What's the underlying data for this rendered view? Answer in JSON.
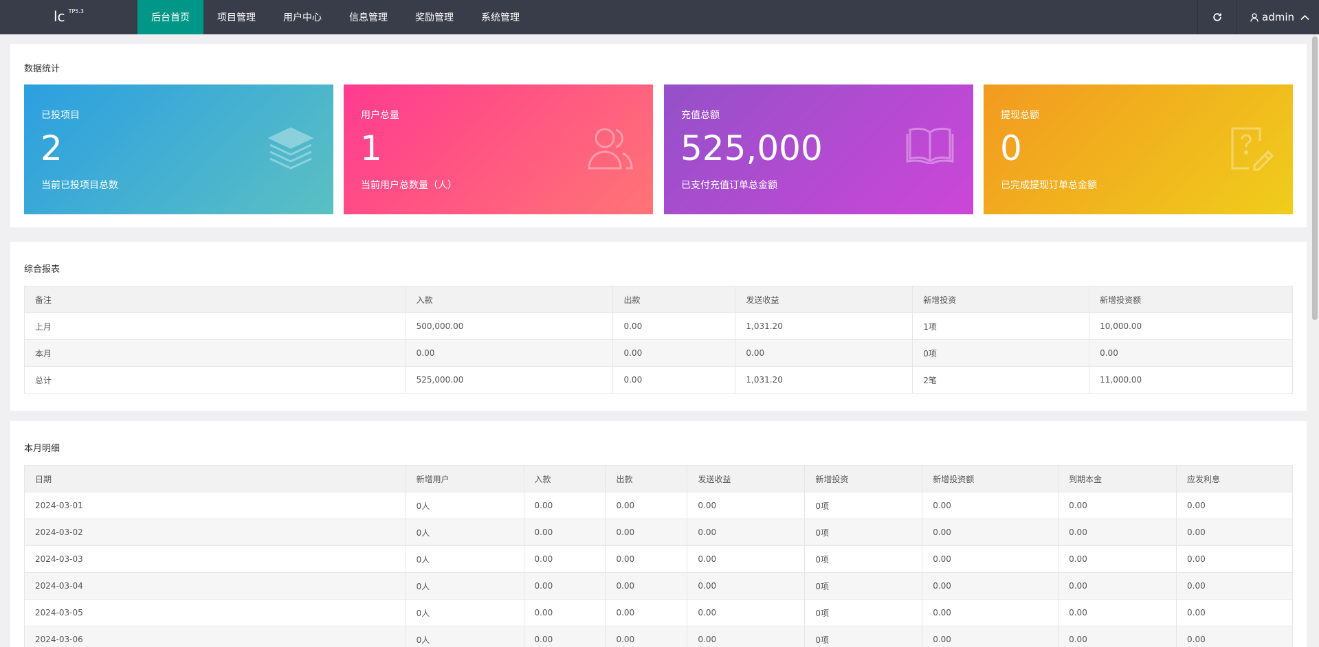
{
  "app": {
    "logo_text": "lc",
    "logo_version": "TP5.3"
  },
  "nav": {
    "items": [
      {
        "label": "后台首页",
        "active": true
      },
      {
        "label": "项目管理"
      },
      {
        "label": "用户中心"
      },
      {
        "label": "信息管理"
      },
      {
        "label": "奖励管理"
      },
      {
        "label": "系统管理"
      }
    ],
    "refresh_icon": "refresh-icon",
    "user": {
      "name": "admin",
      "icon": "user-icon",
      "caret_icon": "chevron-up-icon"
    }
  },
  "stats": {
    "title": "数据统计",
    "tiles": [
      {
        "label": "已投项目",
        "value": "2",
        "desc": "当前已投项目总数",
        "icon": "layers-icon",
        "colors": [
          "#2c9fe0",
          "#5bc0c2"
        ]
      },
      {
        "label": "用户总量",
        "value": "1",
        "desc": "当前用户总数量（人）",
        "icon": "users-icon",
        "colors": [
          "#ff3b8f",
          "#ff7476"
        ]
      },
      {
        "label": "充值总额",
        "value": "525,000",
        "desc": "已支付充值订单总金额",
        "icon": "book-icon",
        "colors": [
          "#9451c8",
          "#cc46d8"
        ]
      },
      {
        "label": "提现总额",
        "value": "0",
        "desc": "已完成提现订单总金额",
        "icon": "question-edit-icon",
        "colors": [
          "#f29a20",
          "#efcd1c"
        ]
      }
    ]
  },
  "report": {
    "title": "综合报表",
    "headers": [
      "备注",
      "入款",
      "出款",
      "发送收益",
      "新增投资",
      "新增投资额"
    ],
    "rows": [
      [
        "上月",
        "500,000.00",
        "0.00",
        "1,031.20",
        "1项",
        "10,000.00"
      ],
      [
        "本月",
        "0.00",
        "0.00",
        "0.00",
        "0项",
        "0.00"
      ],
      [
        "总计",
        "525,000.00",
        "0.00",
        "1,031.20",
        "2笔",
        "11,000.00"
      ]
    ]
  },
  "detail": {
    "title": "本月明细",
    "headers": [
      "日期",
      "新增用户",
      "入款",
      "出款",
      "发送收益",
      "新增投资",
      "新增投资额",
      "到期本金",
      "应发利息"
    ],
    "rows": [
      [
        "2024-03-01",
        "0人",
        "0.00",
        "0.00",
        "0.00",
        "0项",
        "0.00",
        "0.00",
        "0.00"
      ],
      [
        "2024-03-02",
        "0人",
        "0.00",
        "0.00",
        "0.00",
        "0项",
        "0.00",
        "0.00",
        "0.00"
      ],
      [
        "2024-03-03",
        "0人",
        "0.00",
        "0.00",
        "0.00",
        "0项",
        "0.00",
        "0.00",
        "0.00"
      ],
      [
        "2024-03-04",
        "0人",
        "0.00",
        "0.00",
        "0.00",
        "0项",
        "0.00",
        "0.00",
        "0.00"
      ],
      [
        "2024-03-05",
        "0人",
        "0.00",
        "0.00",
        "0.00",
        "0项",
        "0.00",
        "0.00",
        "0.00"
      ],
      [
        "2024-03-06",
        "0人",
        "0.00",
        "0.00",
        "0.00",
        "0项",
        "0.00",
        "0.00",
        "0.00"
      ]
    ]
  },
  "colors": {
    "nav_bg": "#393d49",
    "nav_active": "#009688",
    "page_bg": "#f0f0f2"
  }
}
